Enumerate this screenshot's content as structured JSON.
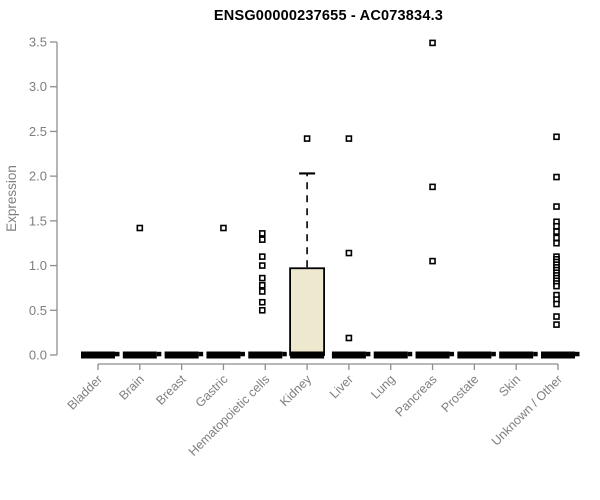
{
  "chart_data": {
    "type": "boxplot",
    "title": "ENSG00000237655 - AC073834.3",
    "ylabel": "Expression",
    "ylim": [
      0,
      3.5
    ],
    "yticks": [
      "0.0",
      "0.5",
      "1.0",
      "1.5",
      "2.0",
      "2.5",
      "3.0",
      "3.5"
    ],
    "grid": false,
    "legend": "none",
    "categories": [
      "Bladder",
      "Brain",
      "Breast",
      "Gastric",
      "Hematopoietic cells",
      "Kidney",
      "Liver",
      "Lung",
      "Pancreas",
      "Prostate",
      "Skin",
      "Unknown / Other"
    ],
    "boxes": [
      {
        "category": "Bladder",
        "q1": 0,
        "median": 0,
        "q3": 0,
        "whisker_low": 0,
        "whisker_high": 0,
        "zero_nub": true,
        "dx": 0,
        "outliers": []
      },
      {
        "category": "Brain",
        "q1": 0,
        "median": 0,
        "q3": 0,
        "whisker_low": 0,
        "whisker_high": 0,
        "zero_nub": true,
        "dx": 0,
        "outliers": [
          1.42
        ]
      },
      {
        "category": "Breast",
        "q1": 0,
        "median": 0,
        "q3": 0,
        "whisker_low": 0,
        "whisker_high": 0,
        "zero_nub": true,
        "dx": 0,
        "outliers": []
      },
      {
        "category": "Gastric",
        "q1": 0,
        "median": 0,
        "q3": 0,
        "whisker_low": 0,
        "whisker_high": 0,
        "zero_nub": true,
        "dx": 0,
        "outliers": [
          1.42
        ]
      },
      {
        "category": "Hematopoietic cells",
        "q1": 0,
        "median": 0,
        "q3": 0,
        "whisker_low": 0,
        "whisker_high": 0,
        "zero_nub": true,
        "dx": -3,
        "outliers": [
          1.36,
          1.29,
          1.1,
          1.0,
          0.86,
          0.78,
          0.71,
          0.59,
          0.5
        ]
      },
      {
        "category": "Kidney",
        "q1": 0,
        "median": 0,
        "q3": 0.97,
        "whisker_low": 0,
        "whisker_high": 2.03,
        "zero_nub": false,
        "dx": 0,
        "outliers": [
          2.42
        ]
      },
      {
        "category": "Liver",
        "q1": 0,
        "median": 0,
        "q3": 0,
        "whisker_low": 0,
        "whisker_high": 0,
        "zero_nub": true,
        "dx": 0,
        "outliers": [
          2.42,
          1.14,
          0.19
        ]
      },
      {
        "category": "Lung",
        "q1": 0,
        "median": 0,
        "q3": 0,
        "whisker_low": 0,
        "whisker_high": 0,
        "zero_nub": true,
        "dx": 0,
        "outliers": []
      },
      {
        "category": "Pancreas",
        "q1": 0,
        "median": 0,
        "q3": 0,
        "whisker_low": 0,
        "whisker_high": 0,
        "zero_nub": true,
        "dx": 0,
        "outliers": [
          3.49,
          1.88,
          1.05
        ]
      },
      {
        "category": "Prostate",
        "q1": 0,
        "median": 0,
        "q3": 0,
        "whisker_low": 0,
        "whisker_high": 0,
        "zero_nub": true,
        "dx": 0,
        "outliers": []
      },
      {
        "category": "Skin",
        "q1": 0,
        "median": 0,
        "q3": 0,
        "whisker_low": 0,
        "whisker_high": 0,
        "zero_nub": true,
        "dx": 0,
        "outliers": []
      },
      {
        "category": "Unknown / Other",
        "q1": 0,
        "median": 0,
        "q3": 0,
        "whisker_low": 0,
        "whisker_high": 0,
        "zero_nub": true,
        "dx": -1.5,
        "outliers": [
          2.44,
          1.99,
          1.66,
          1.49,
          1.44,
          1.38,
          1.31,
          1.25,
          1.1,
          1.07,
          1.04,
          1.01,
          0.98,
          0.95,
          0.92,
          0.89,
          0.86,
          0.83,
          0.8,
          0.77,
          0.67,
          0.62,
          0.57,
          0.43,
          0.34
        ]
      }
    ],
    "colors": {
      "axis": "#8e8e8e",
      "tick_label": "#7f7f7f",
      "box_fill": "#ede8ce",
      "box_stroke": "#000000",
      "point": "#000000",
      "title": "#000000"
    }
  }
}
